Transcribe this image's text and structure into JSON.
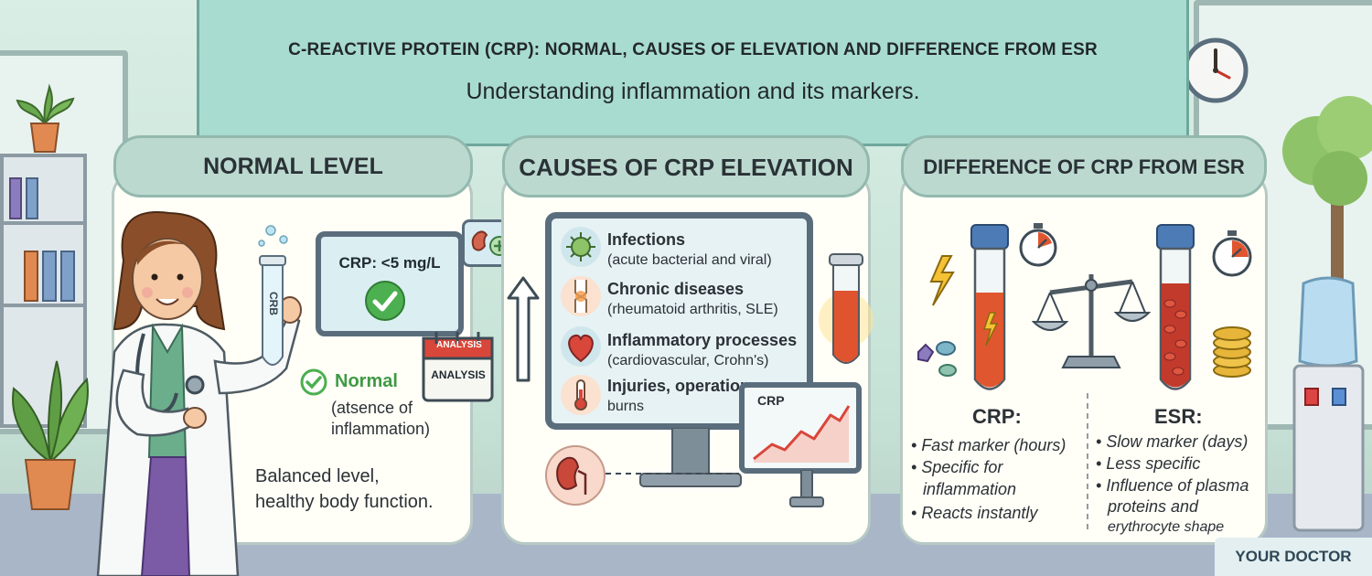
{
  "header": {
    "title": "C-REACTIVE PROTEIN (CRP): NORMAL, CAUSES OF ELEVATION AND DIFFERENCE FROM ESR",
    "subtitle": "Understanding inflammation and its markers."
  },
  "panel_normal": {
    "heading": "NORMAL LEVEL",
    "tube_label": "CRB",
    "monitor_value": "CRP: <5 mg/L",
    "calendar_tab": "ANALYSIS",
    "calendar_body": "ANALYSIS",
    "status_label": "Normal",
    "status_detail_1": "(atsence of",
    "status_detail_2": "inflammation)",
    "summary_1": "Balanced level,",
    "summary_2": "healthy body function."
  },
  "panel_causes": {
    "heading": "CAUSES OF CRP ELEVATION",
    "items": [
      {
        "title": "Infections",
        "detail": "(acute bacterial and viral)",
        "icon": "virus-icon"
      },
      {
        "title": "Chronic diseases",
        "detail": "(rheumatoid arthritis, SLE)",
        "icon": "joint-icon"
      },
      {
        "title": "Inflammatory processes",
        "detail": "(cardiovascular, Crohn's)",
        "icon": "heart-icon"
      },
      {
        "title": "Injuries, operations",
        "detail": "burns",
        "icon": "thermometer-icon"
      }
    ],
    "chart_label": "CRP"
  },
  "panel_diff": {
    "heading": "DIFFERENCE OF CRP FROM ESR",
    "crp_title": "CRP:",
    "crp_points": [
      "Fast marker (hours)",
      "Specific for",
      "inflammation",
      "Reacts instantly"
    ],
    "esr_title": "ESR:",
    "esr_points": [
      "Slow marker (days)",
      "Less specific",
      "Influence of plasma",
      "proteins and",
      "erythrocyte shape"
    ]
  },
  "brand": "YOUR DOCTOR",
  "colors": {
    "header_board": "#a9dcd0",
    "panel_head": "#bcd9d0",
    "check_green": "#4caf50",
    "blood_red": "#c9372c",
    "accent_orange": "#e87a3a"
  }
}
